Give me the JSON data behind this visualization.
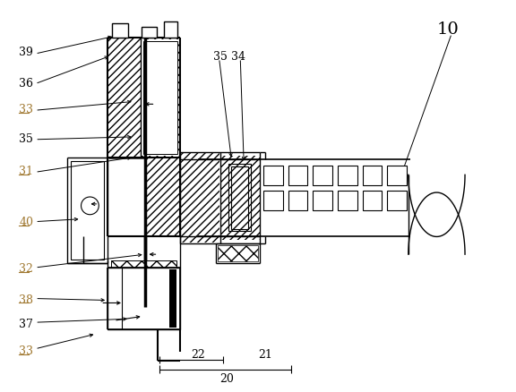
{
  "bg_color": "#ffffff",
  "lc": "#000000",
  "fig_w": 5.76,
  "fig_h": 4.38,
  "dpi": 100
}
